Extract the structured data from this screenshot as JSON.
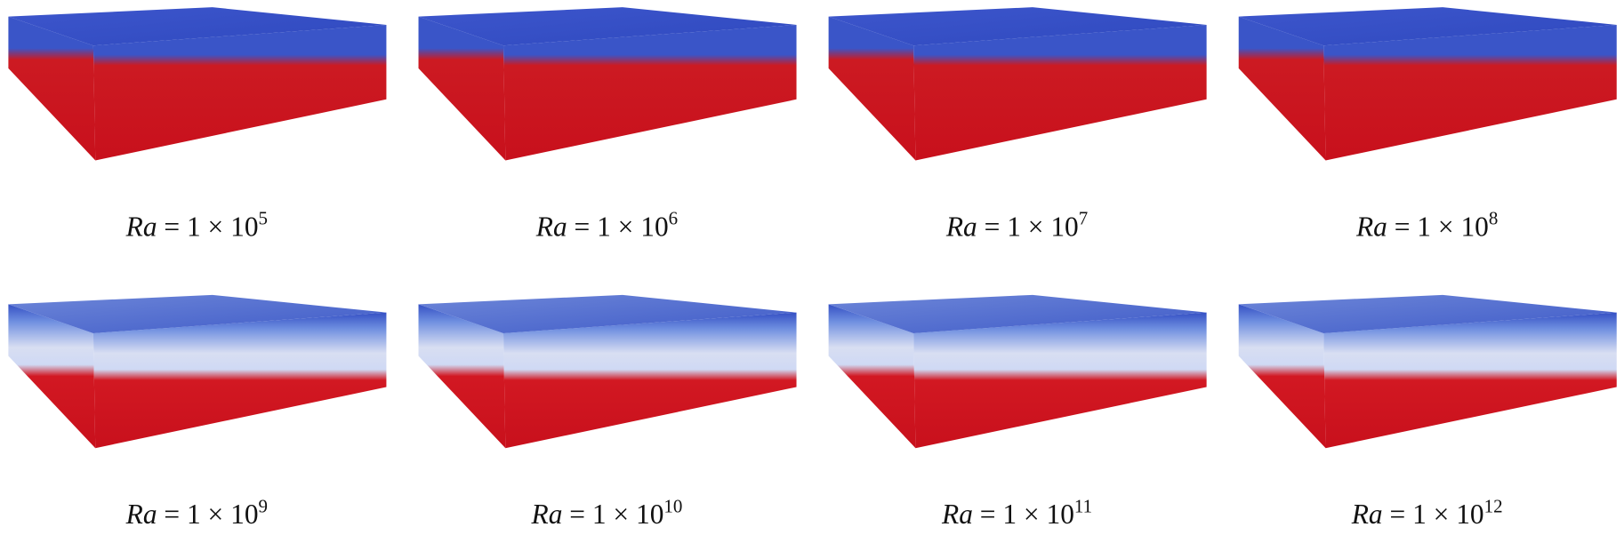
{
  "panels": [
    {
      "variable": "Ra",
      "expression": " = 1 × 10",
      "exponent": "5"
    },
    {
      "variable": "Ra",
      "expression": " = 1 × 10",
      "exponent": "6"
    },
    {
      "variable": "Ra",
      "expression": " = 1 × 10",
      "exponent": "7"
    },
    {
      "variable": "Ra",
      "expression": " = 1 × 10",
      "exponent": "8"
    },
    {
      "variable": "Ra",
      "expression": " = 1 × 10",
      "exponent": "9"
    },
    {
      "variable": "Ra",
      "expression": " = 1 × 10",
      "exponent": "10"
    },
    {
      "variable": "Ra",
      "expression": " = 1 × 10",
      "exponent": "11"
    },
    {
      "variable": "Ra",
      "expression": " = 1 × 10",
      "exponent": "12"
    }
  ]
}
